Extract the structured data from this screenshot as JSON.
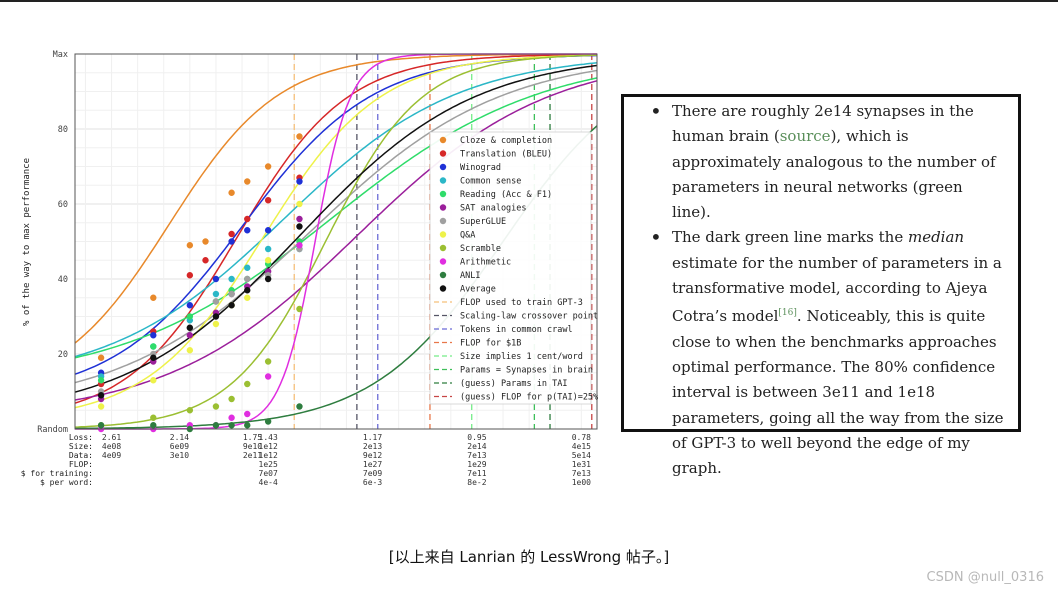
{
  "chart_data": {
    "type": "line",
    "ylabel": "% of the way to max performance",
    "ytick_labels": [
      "Random",
      "20",
      "40",
      "60",
      "80",
      "Max"
    ],
    "ytick_values": [
      0,
      20,
      40,
      60,
      80,
      100
    ],
    "ylim": [
      0,
      100
    ],
    "xscale": "log (training compute)",
    "xlim_log10_flop": [
      21.3,
      31.3
    ],
    "grid": true,
    "legend_position": "right",
    "bottom_table": {
      "row_labels": [
        "Loss:",
        "Size:",
        "Data:",
        "FLOP:",
        "$ for training:",
        "$ per word:"
      ],
      "columns": [
        {
          "log10_flop": 22,
          "values": [
            "2.61",
            "4e08",
            "4e09",
            "",
            "",
            ""
          ]
        },
        {
          "log10_flop": 23.3,
          "values": [
            "2.14",
            "6e09",
            "3e10",
            "",
            "",
            ""
          ]
        },
        {
          "log10_flop": 24.7,
          "values": [
            "1.75",
            "9e10",
            "2e11",
            "",
            "",
            ""
          ]
        },
        {
          "log10_flop": 25,
          "values": [
            "1.43",
            "1e12",
            "1e12",
            "1e25",
            "7e07",
            "4e-4"
          ]
        },
        {
          "log10_flop": 27,
          "values": [
            "1.17",
            "2e13",
            "9e12",
            "1e27",
            "7e09",
            "6e-3"
          ]
        },
        {
          "log10_flop": 29,
          "values": [
            "0.95",
            "2e14",
            "7e13",
            "1e29",
            "7e11",
            "8e-2"
          ]
        },
        {
          "log10_flop": 31,
          "values": [
            "0.78",
            "4e15",
            "5e14",
            "1e31",
            "7e13",
            "1e00"
          ]
        }
      ]
    },
    "series": [
      {
        "name": "Cloze & completion",
        "color": "#e8892b",
        "curve": {
          "midpoint_log10_flop": 23.1,
          "slope": 0.95,
          "floor": 9
        },
        "points": [
          [
            21.8,
            19
          ],
          [
            22.8,
            35
          ],
          [
            23.5,
            49
          ],
          [
            23.8,
            50
          ],
          [
            24.3,
            63
          ],
          [
            24.6,
            66
          ],
          [
            25.0,
            70
          ],
          [
            25.6,
            78
          ]
        ]
      },
      {
        "name": "Translation (BLEU)",
        "color": "#d62728",
        "curve": {
          "midpoint_log10_flop": 24.4,
          "slope": 0.95,
          "floor": 2
        },
        "points": [
          [
            21.8,
            12
          ],
          [
            22.8,
            26
          ],
          [
            23.5,
            41
          ],
          [
            23.8,
            45
          ],
          [
            24.3,
            52
          ],
          [
            24.6,
            56
          ],
          [
            25.0,
            61
          ],
          [
            25.6,
            67
          ]
        ]
      },
      {
        "name": "Winograd",
        "color": "#1f31d6",
        "curve": {
          "midpoint_log10_flop": 24.5,
          "slope": 0.8,
          "floor": 8
        },
        "points": [
          [
            21.8,
            15
          ],
          [
            22.8,
            25
          ],
          [
            23.5,
            33
          ],
          [
            24.0,
            40
          ],
          [
            24.3,
            50
          ],
          [
            24.6,
            53
          ],
          [
            25.0,
            53
          ],
          [
            25.6,
            66
          ]
        ]
      },
      {
        "name": "Common sense",
        "color": "#2bb7c7",
        "curve": {
          "midpoint_log10_flop": 25.3,
          "slope": 0.6,
          "floor": 12
        },
        "points": [
          [
            21.8,
            14
          ],
          [
            22.8,
            22
          ],
          [
            23.5,
            29
          ],
          [
            24.0,
            36
          ],
          [
            24.3,
            40
          ],
          [
            24.6,
            43
          ],
          [
            25.0,
            48
          ],
          [
            25.6,
            48
          ]
        ]
      },
      {
        "name": "Reading (Acc & F1)",
        "color": "#2fdc6a",
        "curve": {
          "midpoint_log10_flop": 26.2,
          "slope": 0.5,
          "floor": 12
        },
        "points": [
          [
            21.8,
            13
          ],
          [
            22.8,
            22
          ],
          [
            23.5,
            30
          ],
          [
            24.0,
            34
          ],
          [
            24.3,
            37
          ],
          [
            24.6,
            40
          ],
          [
            25.0,
            44
          ],
          [
            25.6,
            50
          ]
        ]
      },
      {
        "name": "SAT analogies",
        "color": "#9b1f9b",
        "curve": {
          "midpoint_log10_flop": 26.7,
          "slope": 0.55,
          "floor": 3
        },
        "points": [
          [
            21.8,
            8
          ],
          [
            22.8,
            18
          ],
          [
            23.5,
            25
          ],
          [
            24.0,
            31
          ],
          [
            24.3,
            36
          ],
          [
            24.6,
            38
          ],
          [
            25.0,
            42
          ],
          [
            25.6,
            56
          ]
        ]
      },
      {
        "name": "SuperGLUE",
        "color": "#a0a0a0",
        "curve": {
          "midpoint_log10_flop": 25.8,
          "slope": 0.55,
          "floor": 5
        },
        "points": [
          [
            21.8,
            10
          ],
          [
            22.8,
            20
          ],
          [
            23.5,
            27
          ],
          [
            24.0,
            34
          ],
          [
            24.3,
            36
          ],
          [
            24.6,
            40
          ],
          [
            25.0,
            41
          ],
          [
            25.6,
            48
          ]
        ]
      },
      {
        "name": "Q&A",
        "color": "#eef24a",
        "curve": {
          "midpoint_log10_flop": 24.9,
          "slope": 0.9,
          "floor": 2
        },
        "points": [
          [
            21.8,
            6
          ],
          [
            22.8,
            13
          ],
          [
            23.5,
            21
          ],
          [
            24.0,
            28
          ],
          [
            24.3,
            33
          ],
          [
            24.6,
            35
          ],
          [
            25.0,
            45
          ],
          [
            25.6,
            60
          ]
        ]
      },
      {
        "name": "Scramble",
        "color": "#9bbf32",
        "curve": {
          "midpoint_log10_flop": 26.1,
          "slope": 1.1,
          "floor": 0
        },
        "points": [
          [
            21.8,
            1
          ],
          [
            22.8,
            3
          ],
          [
            23.5,
            5
          ],
          [
            24.0,
            6
          ],
          [
            24.3,
            8
          ],
          [
            24.6,
            12
          ],
          [
            25.0,
            18
          ],
          [
            25.6,
            32
          ]
        ]
      },
      {
        "name": "Arithmetic",
        "color": "#e02ee0",
        "curve": {
          "midpoint_log10_flop": 25.9,
          "slope": 3.0,
          "floor": 0
        },
        "points": [
          [
            21.8,
            0
          ],
          [
            22.8,
            0
          ],
          [
            23.5,
            1
          ],
          [
            24.0,
            1
          ],
          [
            24.3,
            3
          ],
          [
            24.6,
            4
          ],
          [
            25.0,
            14
          ],
          [
            25.6,
            49
          ]
        ]
      },
      {
        "name": "ANLI",
        "color": "#2e7d3f",
        "curve": {
          "midpoint_log10_flop": 29.5,
          "slope": 0.8,
          "floor": 0
        },
        "points": [
          [
            21.8,
            1
          ],
          [
            22.8,
            1
          ],
          [
            23.5,
            0
          ],
          [
            24.0,
            1
          ],
          [
            24.3,
            1
          ],
          [
            24.6,
            1
          ],
          [
            25.0,
            2
          ],
          [
            25.6,
            6
          ]
        ]
      },
      {
        "name": "Average",
        "color": "#111111",
        "curve": {
          "midpoint_log10_flop": 25.6,
          "slope": 0.6,
          "floor": 3
        },
        "points": [
          [
            21.8,
            9
          ],
          [
            22.8,
            19
          ],
          [
            23.5,
            27
          ],
          [
            24.0,
            30
          ],
          [
            24.3,
            33
          ],
          [
            24.6,
            37
          ],
          [
            25.0,
            40
          ],
          [
            25.6,
            54
          ]
        ]
      }
    ],
    "vlines": [
      {
        "name": "FLOP used to train GPT-3",
        "color": "#f5c07a",
        "log10_flop": 25.5
      },
      {
        "name": "Scaling-law crossover point",
        "color": "#556",
        "log10_flop": 26.7
      },
      {
        "name": "Tokens in common crawl",
        "color": "#6b6bd6",
        "log10_flop": 27.1
      },
      {
        "name": "FLOP for $1B",
        "color": "#e8774a",
        "log10_flop": 28.1
      },
      {
        "name": "Size implies 1 cent/word",
        "color": "#74ec88",
        "log10_flop": 28.9
      },
      {
        "name": "Params = Synapses in brain",
        "color": "#3fbf5a",
        "log10_flop": 30.1
      },
      {
        "name": "(guess) Params in TAI",
        "color": "#2e7d3f",
        "log10_flop": 30.4
      },
      {
        "name": "(guess) FLOP for p(TAI)=25%",
        "color": "#c74545",
        "log10_flop": 31.2
      }
    ]
  },
  "textbox": {
    "b1_part1": "There are roughly 2e14 synapses in the human brain (",
    "b1_link": "source",
    "b1_part2": "), which is approximately analogous to the number of parameters in neural networks (green line).",
    "b2_part1": "The dark green line marks the ",
    "b2_em": "median",
    "b2_part2": " estimate for the number of parameters in a transformative model, according to Ajeya Cotra’s model",
    "b2_sup": "[16]",
    "b2_part3": ". Noticeably, this is quite close to when the benchmarks approaches optimal performance. The 80% confidence interval is between 3e11 and 1e18 parameters, going all the way from the size of GPT-3 to well beyond the edge of my graph."
  },
  "caption": "[以上来自 Lanrian 的 LessWrong 帖子。]",
  "watermark": "CSDN @null_0316"
}
